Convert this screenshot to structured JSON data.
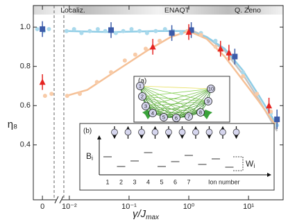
{
  "chart_data": [
    {
      "type": "scatter",
      "ylabel": "η₈",
      "ylim": [
        0.12,
        1.11
      ],
      "yticks": [
        0.4,
        0.6,
        0.8,
        {
          "value": 1,
          "label": "1.0"
        }
      ],
      "xlim": [
        -0.7,
        0.9
      ],
      "xticks": [
        0
      ],
      "series": [
        {
          "marker": "circle",
          "color": "#f8cba8",
          "x": [
            0.2,
            0.7
          ],
          "values": [
            0.65,
            0.66
          ]
        },
        {
          "marker": "circle",
          "color": "#a9d9ec",
          "x": [
            -0.4,
            0.1,
            0.5
          ],
          "values": [
            0.99,
            0.98,
            0.99
          ]
        },
        {
          "marker": "square",
          "color": "#3b5ba9",
          "x": [
            0
          ],
          "values": [
            0.99
          ],
          "errors": [
            0.04
          ]
        },
        {
          "marker": "triangle",
          "color": "#e52421",
          "x": [
            0
          ],
          "values": [
            0.72
          ],
          "errors": [
            0.04
          ]
        }
      ]
    },
    {
      "type": "scatter",
      "log_x": true,
      "xlabel": "γ/J",
      "xlabel_sub": "max",
      "xlim": [
        0.0081,
        38
      ],
      "ylim": [
        0.12,
        1.11
      ],
      "xticks": [
        {
          "value": 0.01,
          "label": "10⁻²"
        },
        {
          "value": 0.1,
          "label": "10⁻¹"
        },
        {
          "value": 1,
          "label": "10⁰"
        },
        {
          "value": 10,
          "label": "10¹"
        }
      ],
      "regions": [
        "Localiz.",
        "ENAQT",
        "Q. Zeno"
      ],
      "series": [
        {
          "marker": "line",
          "color": "#c4c4c4",
          "x": [
            1,
            2,
            4,
            8,
            15,
            30
          ],
          "values": [
            0.99,
            0.95,
            0.88,
            0.76,
            0.63,
            0.47
          ]
        },
        {
          "marker": "line",
          "color": "#8fcde6",
          "x": [
            0.009,
            0.05,
            0.3,
            1,
            2,
            4,
            8,
            15,
            30
          ],
          "values": [
            0.98,
            0.975,
            0.98,
            0.98,
            0.95,
            0.89,
            0.78,
            0.65,
            0.5
          ]
        },
        {
          "marker": "line",
          "color": "#f5c096",
          "x": [
            0.009,
            0.02,
            0.05,
            0.1,
            0.2,
            0.5,
            1,
            2,
            4,
            8,
            15,
            30
          ],
          "values": [
            0.65,
            0.68,
            0.76,
            0.82,
            0.88,
            0.95,
            0.98,
            0.94,
            0.85,
            0.73,
            0.62,
            0.49
          ]
        },
        {
          "marker": "circle",
          "color": "#a9d9ec",
          "x": [
            0.009,
            0.012,
            0.016,
            0.022,
            0.03,
            0.04,
            0.06,
            0.08,
            0.11,
            0.15,
            0.2,
            0.28,
            0.4,
            0.55,
            0.75,
            1,
            1.6,
            2.8,
            4.7,
            8.1,
            13.8,
            23.6,
            30
          ],
          "values": [
            0.98,
            0.99,
            0.97,
            0.98,
            0.99,
            0.98,
            0.97,
            0.98,
            0.99,
            0.98,
            0.97,
            0.98,
            0.99,
            0.98,
            0.97,
            0.98,
            0.97,
            0.93,
            0.87,
            0.77,
            0.66,
            0.56,
            0.5
          ]
        },
        {
          "marker": "circle",
          "color": "#f8cba8",
          "x": [
            0.0092,
            0.015,
            0.029,
            0.05,
            0.085,
            0.127,
            0.19,
            0.325,
            0.55,
            0.95,
            1.6,
            2.8,
            4.7,
            8.1,
            13.8,
            23.6,
            30
          ],
          "values": [
            0.65,
            0.66,
            0.72,
            0.77,
            0.83,
            0.86,
            0.89,
            0.93,
            0.965,
            0.98,
            0.96,
            0.9,
            0.84,
            0.75,
            0.66,
            0.57,
            0.52
          ]
        },
        {
          "marker": "square",
          "color": "#3b5ba9",
          "x": [
            0.05,
            0.52,
            1.1,
            5.9,
            30
          ],
          "values": [
            0.985,
            0.97,
            0.985,
            0.85,
            0.53
          ],
          "errors": [
            0.04,
            0.04,
            0.04,
            0.04,
            0.05
          ]
        },
        {
          "marker": "triangle",
          "color": "#e52421",
          "x": [
            0.25,
            1,
            3.4,
            4.7,
            22
          ],
          "values": [
            0.9,
            0.975,
            0.89,
            0.87,
            0.6
          ],
          "errors": [
            0.04,
            0.04,
            0.04,
            0.04,
            0.04
          ]
        }
      ]
    }
  ],
  "insets": {
    "a": {
      "label": "(a)",
      "nodes": [
        "1",
        "2",
        "3",
        "4",
        "5",
        "6",
        "7",
        "8",
        "9",
        "10"
      ]
    },
    "b": {
      "label": "(b)",
      "ylabel": "B",
      "ylabel_sub": "i",
      "ticks": [
        "1",
        "2",
        "3",
        "4",
        "5",
        "6",
        "7"
      ],
      "xlabel": "Ion number",
      "width_label": "W",
      "width_sub": "i"
    }
  }
}
